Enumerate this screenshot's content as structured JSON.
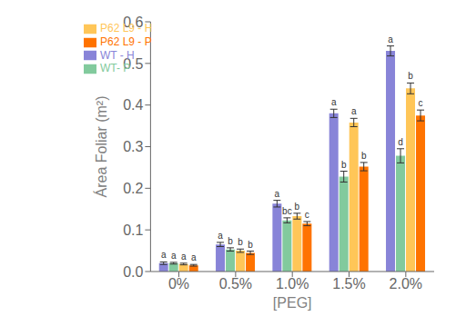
{
  "chart_data": {
    "type": "bar",
    "categories": [
      "0%",
      "0.5%",
      "1.0%",
      "1.5%",
      "2.0%"
    ],
    "series": [
      {
        "name": "WT - H",
        "color": "#8884d8",
        "values": [
          0.02,
          0.065,
          0.163,
          0.38,
          0.53
        ],
        "errors": [
          0.003,
          0.005,
          0.008,
          0.01,
          0.012
        ],
        "letters": [
          "a",
          "a",
          "a",
          "a",
          "a"
        ]
      },
      {
        "name": "WT- P",
        "color": "#82ca9d",
        "values": [
          0.02,
          0.053,
          0.123,
          0.228,
          0.278
        ],
        "errors": [
          0.002,
          0.004,
          0.006,
          0.013,
          0.017
        ],
        "letters": [
          "a",
          "b",
          "bc",
          "b",
          "d"
        ]
      },
      {
        "name": "P62 L9 - H",
        "color": "#ffc658",
        "values": [
          0.018,
          0.05,
          0.133,
          0.358,
          0.44
        ],
        "errors": [
          0.002,
          0.004,
          0.007,
          0.01,
          0.013
        ],
        "letters": [
          "a",
          "b",
          "b",
          "a",
          "b"
        ]
      },
      {
        "name": "P62 L9 - P",
        "color": "#ff7300",
        "values": [
          0.015,
          0.045,
          0.115,
          0.252,
          0.375
        ],
        "errors": [
          0.002,
          0.004,
          0.005,
          0.01,
          0.013
        ],
        "letters": [
          "a",
          "b",
          "c",
          "b",
          "c"
        ]
      }
    ],
    "xlabel": "[PEG]",
    "ylabel": "Área Foliar (m²)",
    "ylim": [
      0,
      0.6
    ],
    "yticks": [
      {
        "value": 0,
        "label": "0.0"
      },
      0.1,
      0.2,
      0.3,
      0.4,
      0.5,
      0.6
    ],
    "grid": false,
    "legend": "upper left"
  }
}
